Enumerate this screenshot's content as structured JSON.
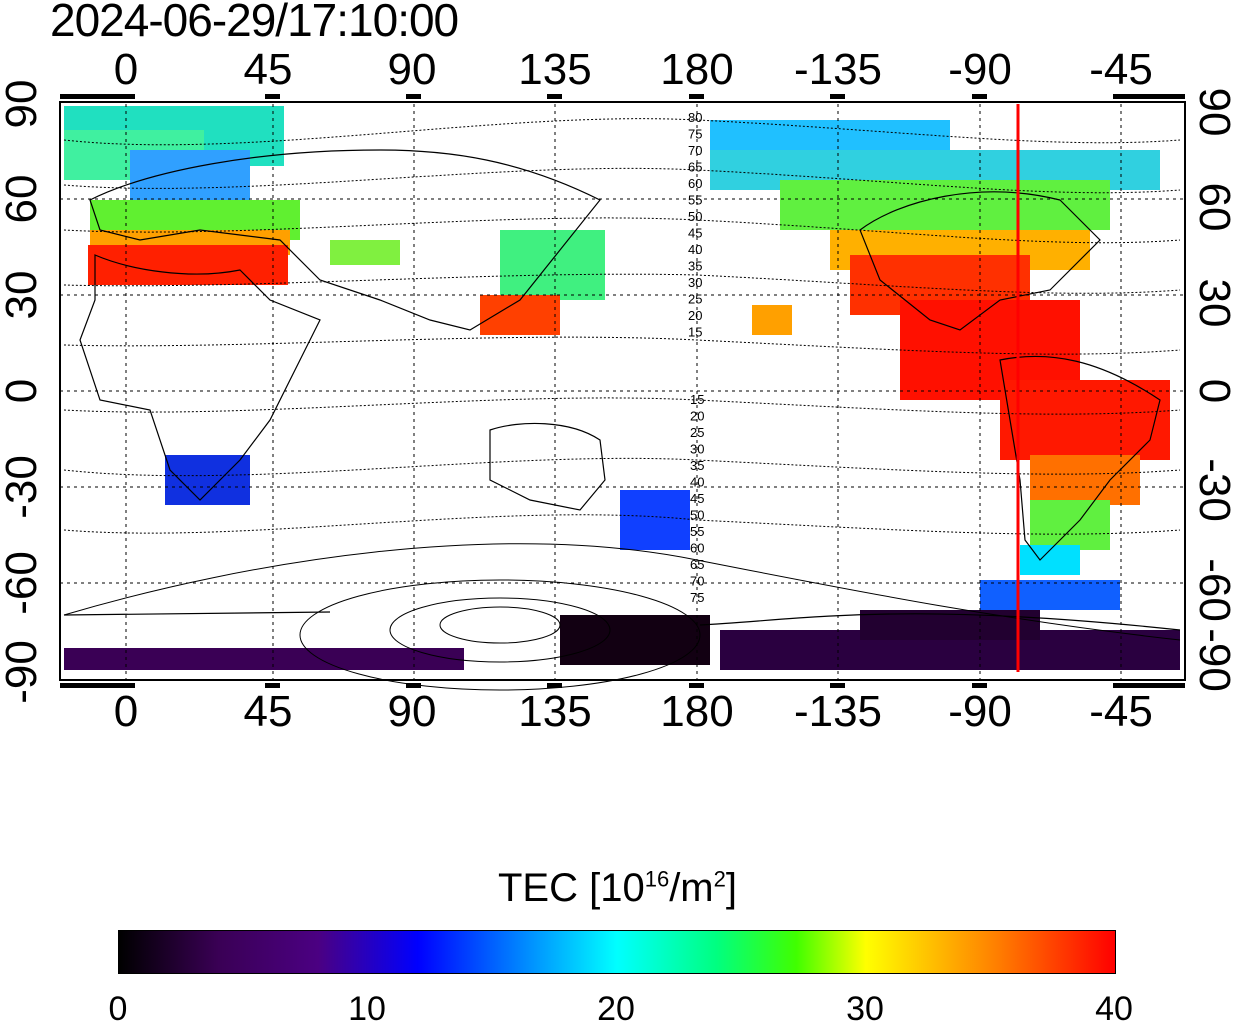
{
  "title": "2024-06-29/17:10:00",
  "map": {
    "type": "global TEC map",
    "longitude_ticks": [
      "0",
      "45",
      "90",
      "135",
      "180",
      "-135",
      "-90",
      "-45"
    ],
    "latitude_ticks": [
      "90",
      "60",
      "30",
      "0",
      "-30",
      "-60",
      "-90"
    ],
    "terminator_longitude": -79,
    "terminator_color": "#ff0000",
    "contour_labels_north": [
      "80",
      "75",
      "70",
      "65",
      "60",
      "55",
      "50",
      "45",
      "40",
      "35",
      "30",
      "25",
      "20",
      "15"
    ],
    "contour_labels_south": [
      "15",
      "20",
      "25",
      "30",
      "35",
      "40",
      "45",
      "50",
      "55",
      "60",
      "65",
      "70",
      "75"
    ]
  },
  "colorbar": {
    "title_prefix": "TEC  [10",
    "title_exp": "16",
    "title_mid": "/m",
    "title_exp2": "2",
    "title_suffix": "]",
    "min": 0,
    "max": 40,
    "tick_labels": [
      "0",
      "10",
      "20",
      "30",
      "40"
    ],
    "colors": [
      "#000000",
      "#4b0082",
      "#0000ff",
      "#00ffff",
      "#40ff00",
      "#ffff00",
      "#ff0000"
    ]
  }
}
